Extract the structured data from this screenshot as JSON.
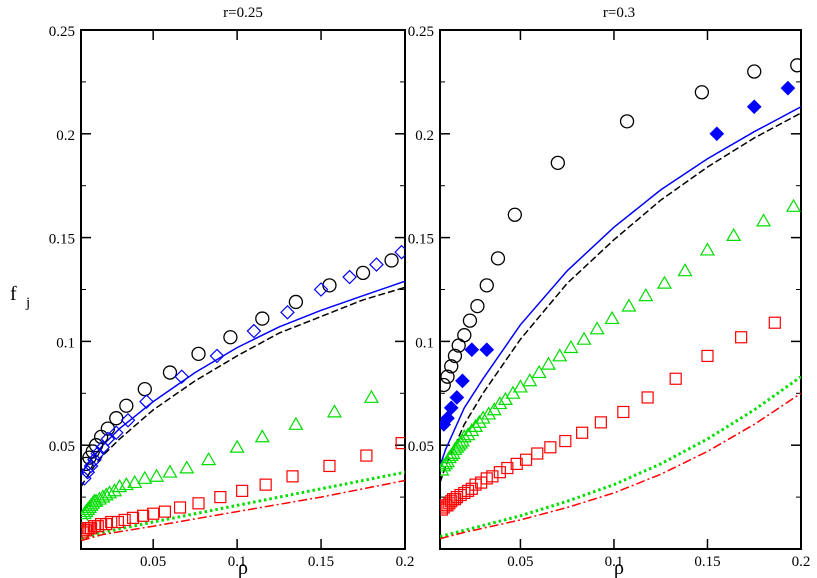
{
  "chart_data": [
    {
      "type": "scatter",
      "title": "r=0.25",
      "xlabel": "ρ",
      "ylabel": "f_j",
      "xlim": [
        0.007,
        0.2
      ],
      "ylim": [
        0,
        0.25
      ],
      "xticks": [
        0.05,
        0.1,
        0.15,
        0.2
      ],
      "xtick_labels": [
        "0.05",
        "0.1",
        "0.15",
        "0.2"
      ],
      "yticks": [
        0.05,
        0.1,
        0.15,
        0.2,
        0.25
      ],
      "ytick_labels": [
        "0.05",
        "0.1",
        "0.15",
        "0.2",
        "0.25"
      ],
      "series": [
        {
          "name": "circles",
          "marker": "circle",
          "color": "#000000",
          "x": [
            0.01,
            0.012,
            0.014,
            0.016,
            0.019,
            0.023,
            0.028,
            0.034,
            0.045,
            0.06,
            0.077,
            0.096,
            0.115,
            0.135,
            0.155,
            0.175,
            0.192
          ],
          "y": [
            0.041,
            0.044,
            0.047,
            0.05,
            0.054,
            0.058,
            0.063,
            0.069,
            0.077,
            0.085,
            0.094,
            0.102,
            0.111,
            0.119,
            0.127,
            0.133,
            0.139
          ]
        },
        {
          "name": "diamonds",
          "marker": "diamond-open",
          "color": "#0000ff",
          "x": [
            0.009,
            0.011,
            0.013,
            0.015,
            0.017,
            0.02,
            0.023,
            0.028,
            0.035,
            0.046,
            0.067,
            0.088,
            0.11,
            0.13,
            0.15,
            0.167,
            0.183,
            0.198
          ],
          "y": [
            0.034,
            0.037,
            0.04,
            0.043,
            0.046,
            0.049,
            0.053,
            0.056,
            0.062,
            0.071,
            0.083,
            0.093,
            0.105,
            0.114,
            0.125,
            0.131,
            0.137,
            0.143
          ]
        },
        {
          "name": "triangles",
          "marker": "triangle",
          "color": "#00dd00",
          "x": [
            0.008,
            0.009,
            0.01,
            0.011,
            0.012,
            0.013,
            0.014,
            0.015,
            0.016,
            0.018,
            0.02,
            0.022,
            0.024,
            0.027,
            0.03,
            0.034,
            0.039,
            0.045,
            0.052,
            0.06,
            0.07,
            0.083,
            0.1,
            0.115,
            0.135,
            0.158,
            0.18
          ],
          "y": [
            0.015,
            0.017,
            0.018,
            0.019,
            0.02,
            0.021,
            0.022,
            0.023,
            0.023,
            0.024,
            0.025,
            0.026,
            0.027,
            0.028,
            0.03,
            0.031,
            0.032,
            0.034,
            0.035,
            0.037,
            0.039,
            0.043,
            0.049,
            0.054,
            0.06,
            0.066,
            0.073
          ]
        },
        {
          "name": "squares",
          "marker": "square",
          "color": "#ff0000",
          "x": [
            0.008,
            0.009,
            0.01,
            0.011,
            0.012,
            0.013,
            0.015,
            0.017,
            0.019,
            0.022,
            0.025,
            0.029,
            0.033,
            0.038,
            0.044,
            0.05,
            0.057,
            0.066,
            0.077,
            0.09,
            0.103,
            0.117,
            0.133,
            0.155,
            0.177,
            0.198
          ],
          "y": [
            0.008,
            0.009,
            0.009,
            0.01,
            0.01,
            0.01,
            0.011,
            0.011,
            0.012,
            0.012,
            0.013,
            0.013,
            0.014,
            0.015,
            0.016,
            0.017,
            0.018,
            0.02,
            0.022,
            0.025,
            0.028,
            0.031,
            0.035,
            0.04,
            0.045,
            0.051
          ]
        },
        {
          "name": "solid theory",
          "line": "solid",
          "color": "#0000ff",
          "x": [
            0.007,
            0.01,
            0.015,
            0.02,
            0.03,
            0.05,
            0.075,
            0.1,
            0.125,
            0.15,
            0.175,
            0.2
          ],
          "y": [
            0.036,
            0.04,
            0.045,
            0.05,
            0.058,
            0.071,
            0.085,
            0.097,
            0.107,
            0.115,
            0.122,
            0.129
          ]
        },
        {
          "name": "dashed theory",
          "line": "dashed",
          "color": "#000000",
          "x": [
            0.007,
            0.01,
            0.015,
            0.02,
            0.03,
            0.05,
            0.075,
            0.1,
            0.125,
            0.15,
            0.175,
            0.2
          ],
          "y": [
            0.03,
            0.034,
            0.04,
            0.045,
            0.053,
            0.067,
            0.081,
            0.093,
            0.104,
            0.112,
            0.12,
            0.126
          ]
        },
        {
          "name": "dotted theory",
          "line": "dotted",
          "color": "#00dd00",
          "x": [
            0.007,
            0.02,
            0.05,
            0.1,
            0.15,
            0.2
          ],
          "y": [
            0.005,
            0.008,
            0.013,
            0.021,
            0.029,
            0.037
          ]
        },
        {
          "name": "dash-dot theory",
          "line": "dashdot",
          "color": "#ff0000",
          "x": [
            0.007,
            0.02,
            0.05,
            0.1,
            0.15,
            0.2
          ],
          "y": [
            0.004,
            0.007,
            0.011,
            0.018,
            0.025,
            0.033
          ]
        }
      ]
    },
    {
      "type": "scatter",
      "title": "r=0.3",
      "xlabel": "ρ",
      "ylabel": "",
      "xlim": [
        0.007,
        0.2
      ],
      "ylim": [
        0,
        0.25
      ],
      "xticks": [
        0.05,
        0.1,
        0.15,
        0.2
      ],
      "xtick_labels": [
        "0.05",
        "0.1",
        "0.15",
        "0.2"
      ],
      "yticks": [
        0.05,
        0.1,
        0.15,
        0.2,
        0.25
      ],
      "ytick_labels": [
        "0.05",
        "0.1",
        "0.15",
        "0.2",
        "0.25"
      ],
      "series": [
        {
          "name": "circles",
          "marker": "circle",
          "color": "#000000",
          "x": [
            0.009,
            0.011,
            0.013,
            0.015,
            0.017,
            0.02,
            0.023,
            0.027,
            0.032,
            0.038,
            0.047,
            0.07,
            0.107,
            0.147,
            0.175,
            0.198
          ],
          "y": [
            0.079,
            0.083,
            0.088,
            0.093,
            0.098,
            0.103,
            0.11,
            0.117,
            0.127,
            0.14,
            0.161,
            0.186,
            0.206,
            0.22,
            0.23,
            0.233
          ]
        },
        {
          "name": "filled diamonds",
          "marker": "diamond-filled",
          "color": "#0000ff",
          "x": [
            0.009,
            0.011,
            0.013,
            0.016,
            0.019,
            0.024,
            0.032,
            0.155,
            0.175,
            0.193
          ],
          "y": [
            0.06,
            0.063,
            0.068,
            0.073,
            0.081,
            0.096,
            0.096,
            0.2,
            0.213,
            0.222
          ]
        },
        {
          "name": "triangles",
          "marker": "triangle",
          "color": "#00dd00",
          "x": [
            0.008,
            0.009,
            0.01,
            0.011,
            0.012,
            0.013,
            0.014,
            0.015,
            0.016,
            0.017,
            0.018,
            0.019,
            0.02,
            0.022,
            0.024,
            0.026,
            0.028,
            0.03,
            0.033,
            0.036,
            0.039,
            0.042,
            0.046,
            0.05,
            0.055,
            0.06,
            0.065,
            0.071,
            0.077,
            0.084,
            0.091,
            0.099,
            0.108,
            0.117,
            0.127,
            0.138,
            0.15,
            0.164,
            0.18,
            0.196
          ],
          "y": [
            0.038,
            0.04,
            0.041,
            0.042,
            0.044,
            0.045,
            0.046,
            0.048,
            0.049,
            0.05,
            0.051,
            0.052,
            0.054,
            0.055,
            0.057,
            0.059,
            0.061,
            0.063,
            0.065,
            0.067,
            0.07,
            0.072,
            0.075,
            0.078,
            0.081,
            0.085,
            0.089,
            0.093,
            0.097,
            0.101,
            0.106,
            0.111,
            0.117,
            0.122,
            0.128,
            0.134,
            0.144,
            0.151,
            0.158,
            0.165
          ]
        },
        {
          "name": "squares",
          "marker": "square",
          "color": "#ff0000",
          "x": [
            0.008,
            0.009,
            0.01,
            0.011,
            0.012,
            0.013,
            0.014,
            0.015,
            0.016,
            0.018,
            0.02,
            0.022,
            0.024,
            0.026,
            0.029,
            0.032,
            0.035,
            0.039,
            0.043,
            0.048,
            0.053,
            0.059,
            0.066,
            0.074,
            0.083,
            0.093,
            0.105,
            0.118,
            0.133,
            0.15,
            0.168,
            0.186
          ],
          "y": [
            0.019,
            0.02,
            0.021,
            0.021,
            0.022,
            0.023,
            0.024,
            0.024,
            0.025,
            0.026,
            0.027,
            0.028,
            0.029,
            0.031,
            0.032,
            0.034,
            0.035,
            0.037,
            0.039,
            0.041,
            0.043,
            0.046,
            0.049,
            0.052,
            0.056,
            0.061,
            0.066,
            0.073,
            0.082,
            0.093,
            0.102,
            0.109
          ]
        },
        {
          "name": "solid theory",
          "line": "solid",
          "color": "#0000ff",
          "x": [
            0.007,
            0.01,
            0.015,
            0.02,
            0.03,
            0.05,
            0.075,
            0.1,
            0.125,
            0.15,
            0.175,
            0.2
          ],
          "y": [
            0.04,
            0.048,
            0.058,
            0.068,
            0.082,
            0.108,
            0.134,
            0.155,
            0.173,
            0.188,
            0.201,
            0.213
          ]
        },
        {
          "name": "dashed theory",
          "line": "dashed",
          "color": "#000000",
          "x": [
            0.007,
            0.01,
            0.015,
            0.02,
            0.03,
            0.05,
            0.075,
            0.1,
            0.125,
            0.15,
            0.175,
            0.2
          ],
          "y": [
            0.032,
            0.04,
            0.05,
            0.06,
            0.075,
            0.101,
            0.128,
            0.149,
            0.168,
            0.184,
            0.198,
            0.21
          ]
        },
        {
          "name": "dotted theory",
          "line": "dotted",
          "color": "#00dd00",
          "x": [
            0.007,
            0.02,
            0.05,
            0.075,
            0.1,
            0.125,
            0.15,
            0.175,
            0.2
          ],
          "y": [
            0.006,
            0.009,
            0.016,
            0.023,
            0.031,
            0.041,
            0.053,
            0.067,
            0.083
          ]
        },
        {
          "name": "dash-dot theory",
          "line": "dashdot",
          "color": "#ff0000",
          "x": [
            0.007,
            0.02,
            0.05,
            0.075,
            0.1,
            0.125,
            0.15,
            0.175,
            0.2
          ],
          "y": [
            0.005,
            0.008,
            0.014,
            0.02,
            0.027,
            0.036,
            0.047,
            0.06,
            0.075
          ]
        }
      ]
    }
  ]
}
